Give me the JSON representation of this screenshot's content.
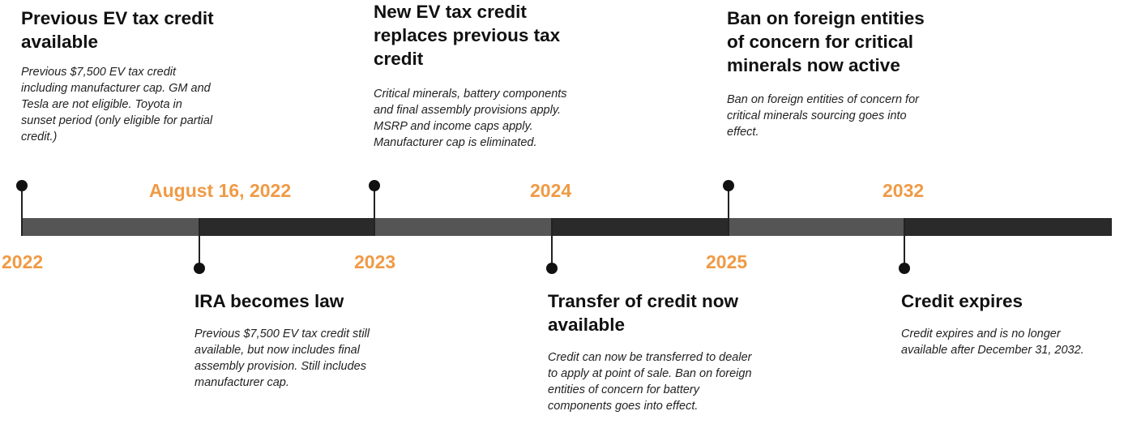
{
  "colors": {
    "accent": "#f09a45",
    "bar_light": "#555555",
    "bar_dark": "#2a2a2a",
    "text": "#111111"
  },
  "timeline": {
    "dates": {
      "d2022": "2022",
      "aug2022": "August 16, 2022",
      "d2023": "2023",
      "d2024": "2024",
      "d2025": "2025",
      "d2032": "2032"
    },
    "events": {
      "previous_credit": {
        "title": "Previous EV tax credit available",
        "description": "Previous $7,500 EV tax credit including manufacturer cap. GM and Tesla are not eligible. Toyota in sunset period (only eligible for partial credit.)"
      },
      "ira_law": {
        "title": "IRA becomes law",
        "description": "Previous $7,500 EV tax credit still available, but now includes final assembly provision. Still includes manufacturer cap."
      },
      "new_credit": {
        "title": "New EV tax credit replaces previous tax credit",
        "description": "Critical minerals, battery components and final assembly provisions apply. MSRP and income caps apply. Manufacturer cap is eliminated."
      },
      "transfer_credit": {
        "title": "Transfer of credit now available",
        "description": "Credit can now be transferred to dealer to apply at point of sale. Ban on foreign entities of concern for battery components goes into effect."
      },
      "ban_minerals": {
        "title": "Ban on foreign entities of concern for critical minerals now active",
        "description": "Ban on foreign entities of concern for critical minerals sourcing goes into effect."
      },
      "credit_expires": {
        "title": "Credit expires",
        "description": "Credit expires and is no longer available after December 31, 2032."
      }
    }
  }
}
